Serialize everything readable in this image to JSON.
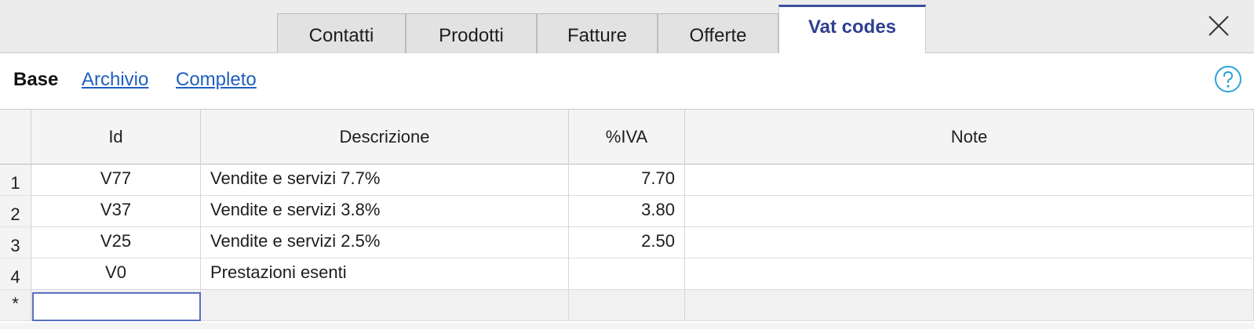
{
  "tabs": [
    {
      "label": "Contatti",
      "active": false
    },
    {
      "label": "Prodotti",
      "active": false
    },
    {
      "label": "Fatture",
      "active": false
    },
    {
      "label": "Offerte",
      "active": false
    },
    {
      "label": "Vat codes",
      "active": true
    }
  ],
  "views": {
    "base": "Base",
    "archivio": "Archivio",
    "completo": "Completo"
  },
  "icons": {
    "close": "close-icon",
    "help": "help-icon"
  },
  "colors": {
    "active_tab": "#2f3f8f",
    "link": "#1f5fbf",
    "help_icon": "#2aa3d8",
    "selection_border": "#5a6fc0"
  },
  "table": {
    "columns": [
      "Id",
      "Descrizione",
      "%IVA",
      "Note"
    ],
    "rows": [
      {
        "num": "1",
        "id": "V77",
        "desc": "Vendite e servizi 7.7%",
        "iva": "7.70",
        "note": ""
      },
      {
        "num": "2",
        "id": "V37",
        "desc": "Vendite e servizi 3.8%",
        "iva": "3.80",
        "note": ""
      },
      {
        "num": "3",
        "id": "V25",
        "desc": "Vendite e servizi 2.5%",
        "iva": "2.50",
        "note": ""
      },
      {
        "num": "4",
        "id": "V0",
        "desc": "Prestazioni esenti",
        "iva": "",
        "note": ""
      }
    ],
    "new_row_marker": "*"
  }
}
